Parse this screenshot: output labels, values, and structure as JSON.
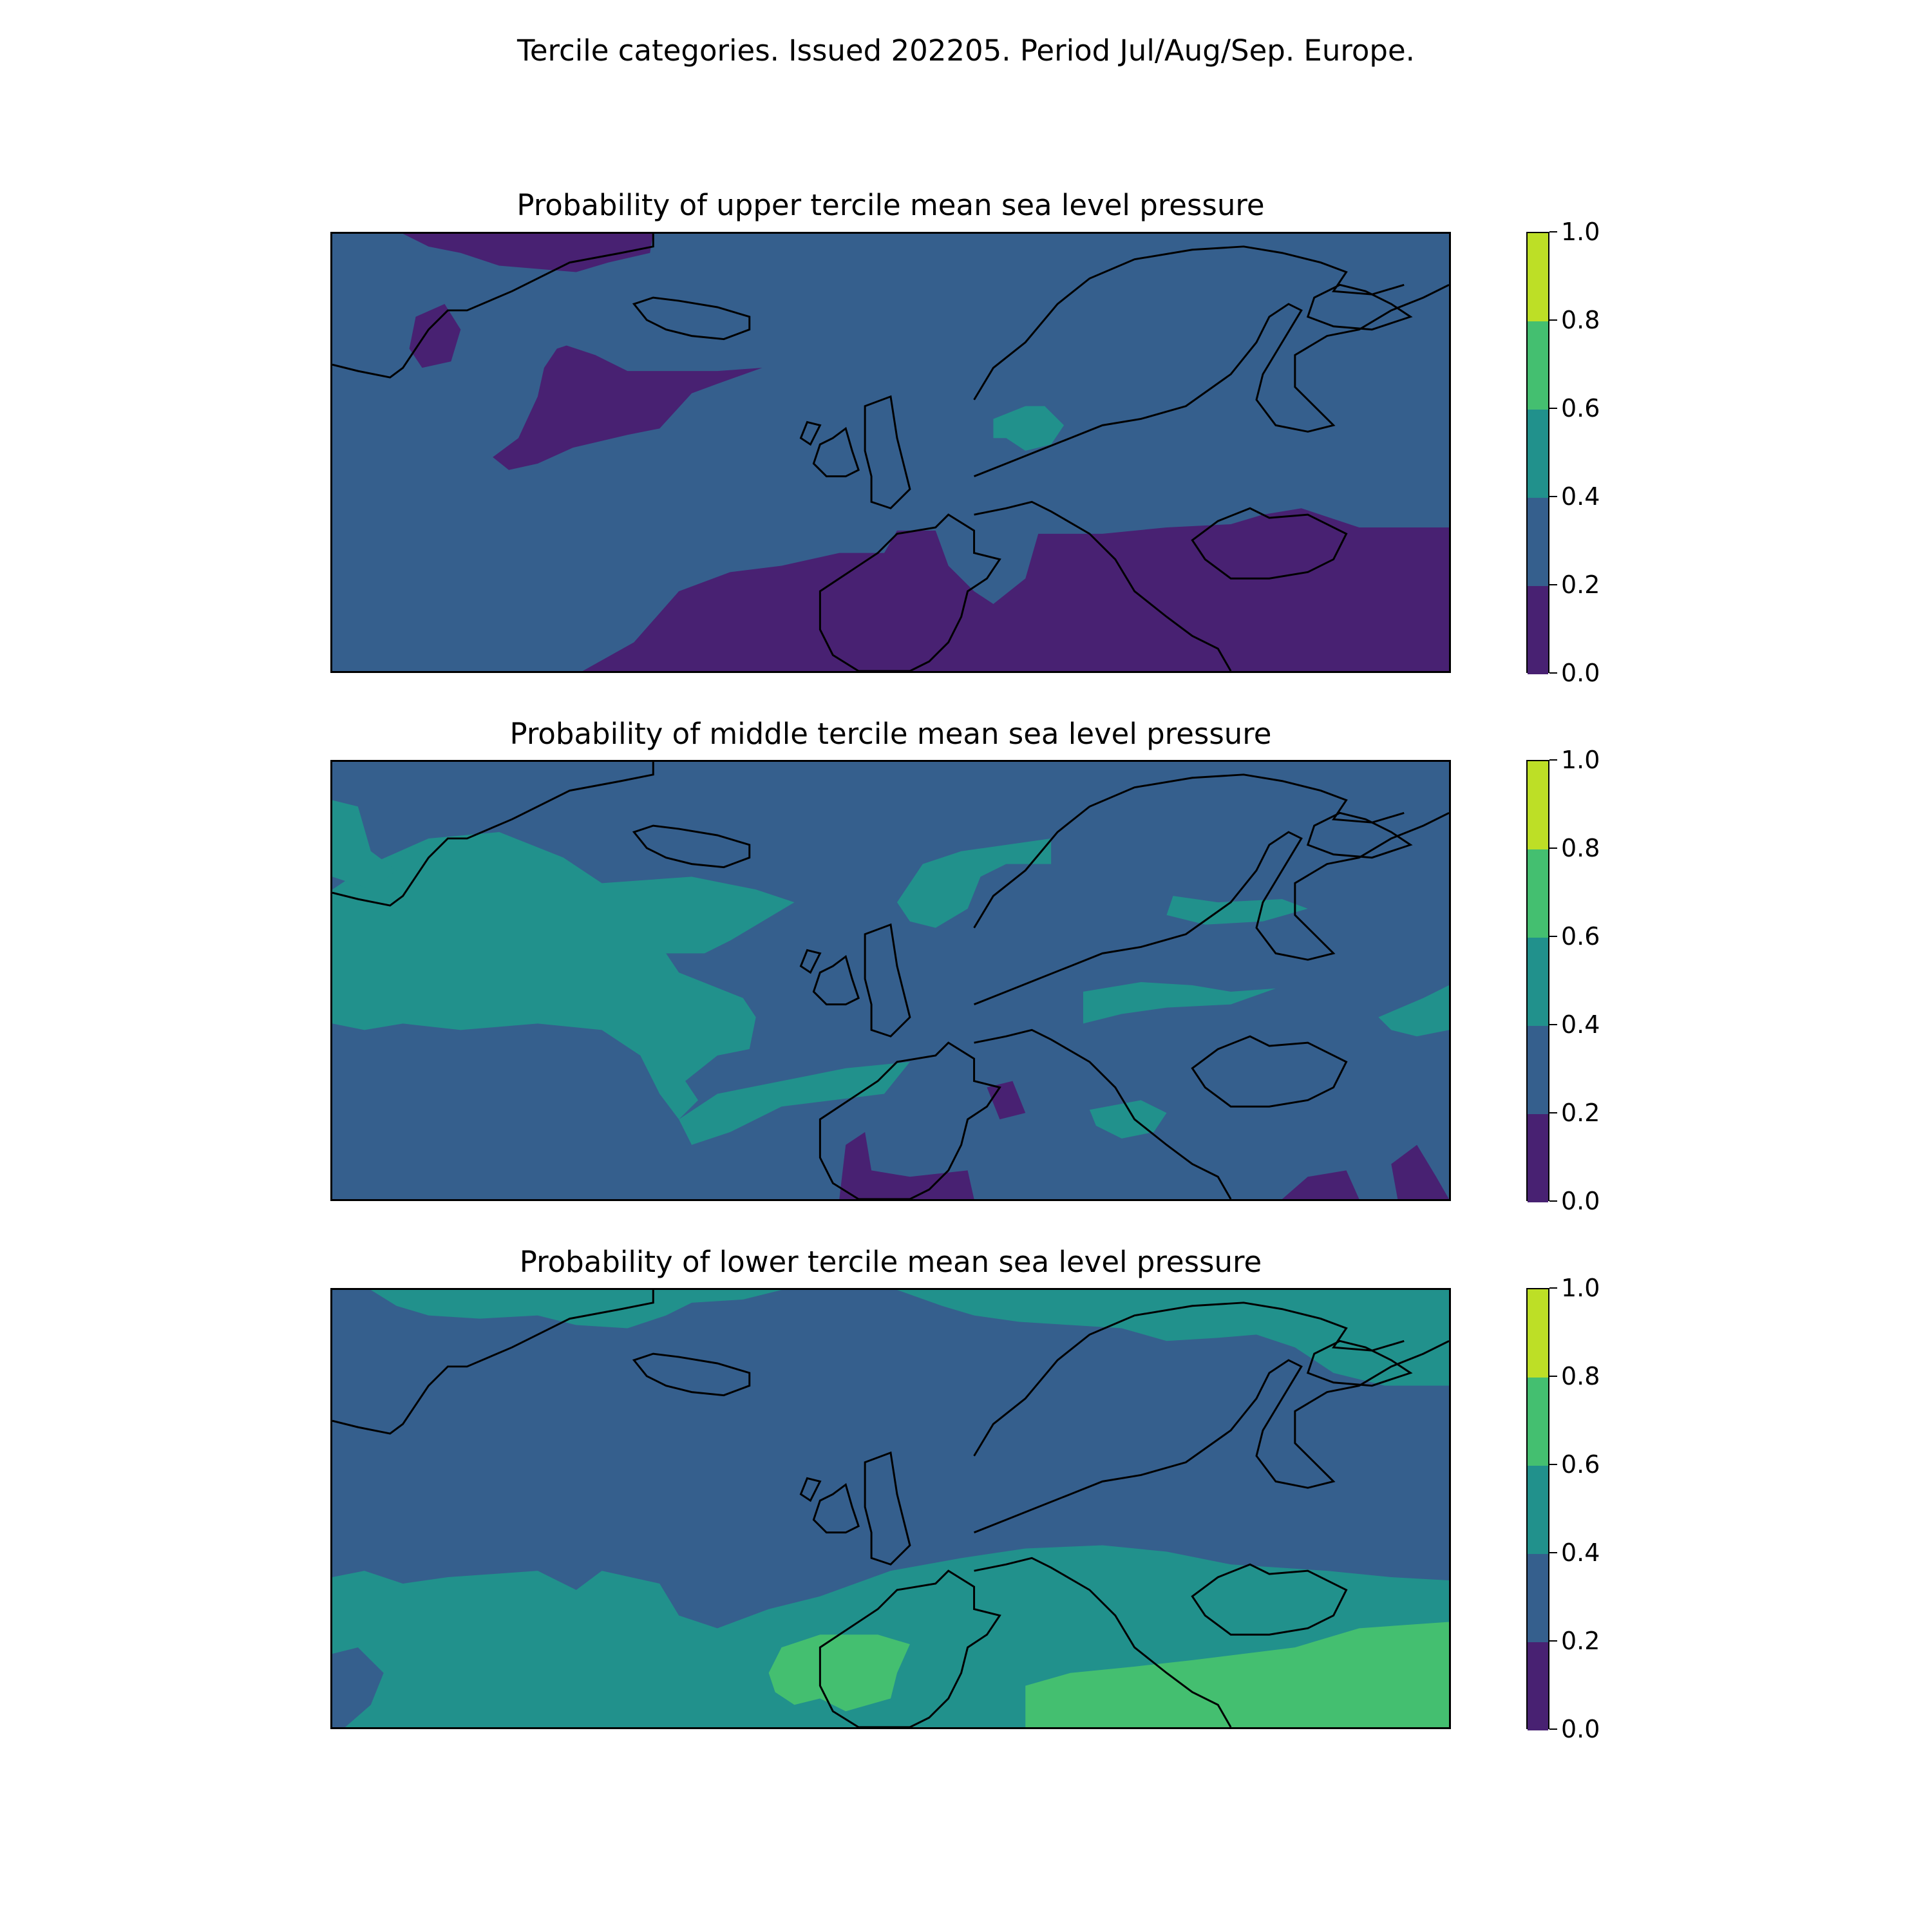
{
  "figure": {
    "title": "Tercile categories. Issued 202205. Period Jul/Aug/Sep. Europe."
  },
  "colors": {
    "level_0_0_2": "#482172",
    "level_0_2_0_4": "#355f8d",
    "level_0_4_0_6": "#21918c",
    "level_0_6_0_8": "#44bf70",
    "level_0_8_1_0": "#bddf26",
    "coastline": "#000000"
  },
  "chart_data": [
    {
      "type": "heatmap",
      "title": "Probability of upper tercile mean sea level pressure",
      "region": "Europe",
      "colorbar": {
        "levels": [
          0.0,
          0.2,
          0.4,
          0.6,
          0.8,
          1.0
        ],
        "tick_labels": [
          "0.0",
          "0.2",
          "0.4",
          "0.6",
          "0.8",
          "1.0"
        ]
      },
      "background_level": "0.2-0.4",
      "regions": [
        {
          "area": "North Atlantic south of Iceland",
          "range": "0.0-0.2"
        },
        {
          "area": "Southern Greenland / north edge",
          "range": "0.0-0.2"
        },
        {
          "area": "Iberia and Mediterranean",
          "range": "0.0-0.2"
        },
        {
          "area": "Balkans, Black Sea, Anatolia",
          "range": "0.0-0.2"
        },
        {
          "area": "Southern Scandinavia / Denmark",
          "range": "0.4-0.6"
        }
      ]
    },
    {
      "type": "heatmap",
      "title": "Probability of middle tercile mean sea level pressure",
      "region": "Europe",
      "colorbar": {
        "levels": [
          0.0,
          0.2,
          0.4,
          0.6,
          0.8,
          1.0
        ],
        "tick_labels": [
          "0.0",
          "0.2",
          "0.4",
          "0.6",
          "0.8",
          "1.0"
        ]
      },
      "background_level": "0.2-0.4",
      "regions": [
        {
          "area": "Central North Atlantic band",
          "range": "0.4-0.6"
        },
        {
          "area": "Greenland coast",
          "range": "0.4-0.6"
        },
        {
          "area": "Norway / Baltic",
          "range": "0.4-0.6"
        },
        {
          "area": "Eastern Europe",
          "range": "0.4-0.6"
        },
        {
          "area": "Bay of Biscay",
          "range": "0.4-0.6"
        },
        {
          "area": "Southern Iberia / North Africa",
          "range": "0.0-0.2"
        }
      ]
    },
    {
      "type": "heatmap",
      "title": "Probability of lower tercile mean sea level pressure",
      "region": "Europe",
      "colorbar": {
        "levels": [
          0.0,
          0.2,
          0.4,
          0.6,
          0.8,
          1.0
        ],
        "tick_labels": [
          "0.0",
          "0.2",
          "0.4",
          "0.6",
          "0.8",
          "1.0"
        ]
      },
      "background_level": "0.2-0.4",
      "regions": [
        {
          "area": "Southern band (Atlantic to Black Sea)",
          "range": "0.4-0.6"
        },
        {
          "area": "Iberia",
          "range": "0.6-0.8"
        },
        {
          "area": "Greece / Turkey",
          "range": "0.6-0.8"
        },
        {
          "area": "Arctic / northern Russia",
          "range": "0.4-0.6"
        }
      ]
    }
  ]
}
